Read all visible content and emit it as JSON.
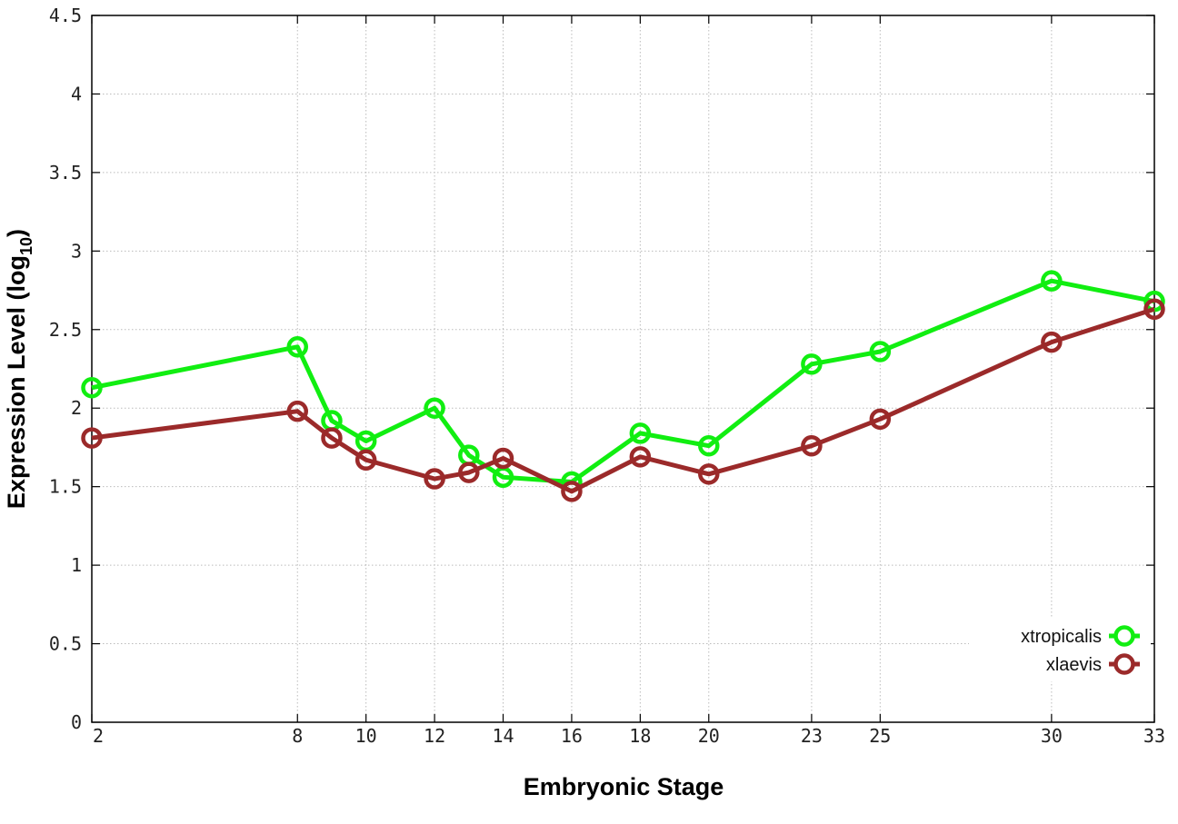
{
  "chart_data": {
    "type": "line",
    "xlabel": "Embryonic Stage",
    "ylabel": "Expression Level (log",
    "ylabel_sub": "10",
    "ylabel_close": ")",
    "xlim": [
      2,
      33
    ],
    "ylim": [
      0,
      4.5
    ],
    "x_ticks": [
      2,
      8,
      10,
      12,
      14,
      16,
      18,
      20,
      23,
      25,
      30,
      33
    ],
    "y_ticks": [
      0,
      0.5,
      1,
      1.5,
      2,
      2.5,
      3,
      3.5,
      4,
      4.5
    ],
    "y_tick_labels": [
      "0",
      "0.5",
      "1",
      "1.5",
      "2",
      "2.5",
      "3",
      "3.5",
      "4",
      "4.5"
    ],
    "grid": true,
    "legend_position": "bottom-right",
    "series": [
      {
        "name": "xtropicalis",
        "color": "#11ee11",
        "x": [
          2,
          8,
          9,
          10,
          12,
          13,
          14,
          16,
          18,
          20,
          23,
          25,
          30,
          33
        ],
        "values": [
          2.13,
          2.39,
          1.92,
          1.79,
          2.0,
          1.7,
          1.56,
          1.53,
          1.84,
          1.76,
          2.28,
          2.36,
          2.81,
          2.68
        ]
      },
      {
        "name": "xlaevis",
        "color": "#9b2a2a",
        "x": [
          2,
          8,
          9,
          10,
          12,
          13,
          14,
          16,
          18,
          20,
          23,
          25,
          30,
          33
        ],
        "values": [
          1.81,
          1.98,
          1.81,
          1.67,
          1.55,
          1.59,
          1.68,
          1.47,
          1.69,
          1.58,
          1.76,
          1.93,
          2.42,
          2.63
        ]
      }
    ]
  }
}
